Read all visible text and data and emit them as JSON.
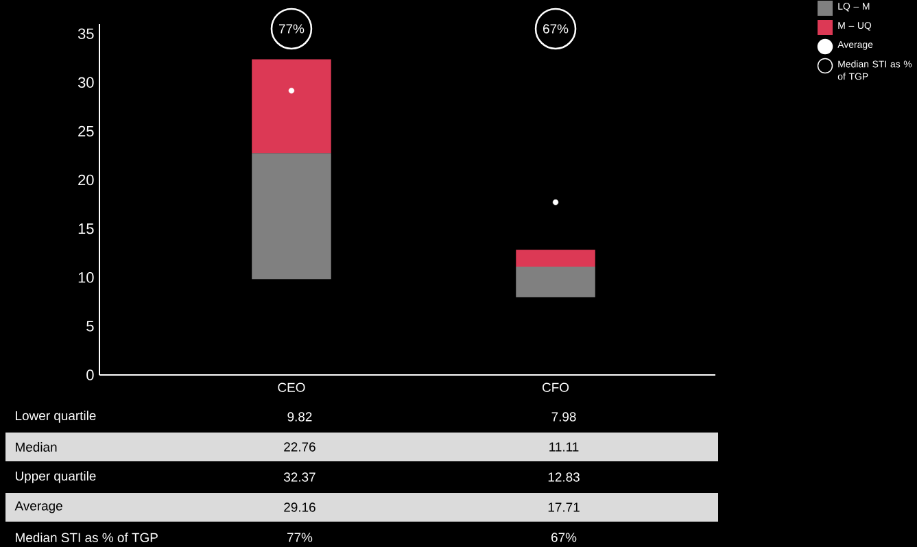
{
  "chart_data": {
    "type": "bar",
    "categories": [
      "CEO",
      "CFO"
    ],
    "series": [
      {
        "name": "LQ – M",
        "color": "#808080",
        "base": [
          9.82,
          7.98
        ],
        "values": [
          12.94,
          3.13
        ]
      },
      {
        "name": "M – UQ",
        "color": "#dc3955",
        "base": [
          22.76,
          11.11
        ],
        "values": [
          9.61,
          1.72
        ]
      },
      {
        "name": "Average",
        "type": "scatter",
        "marker": "circle",
        "color": "#ffffff",
        "values": [
          29.16,
          17.71
        ]
      },
      {
        "name": "Median STI as % of TGP",
        "type": "scatter",
        "marker": "circle",
        "color": "#000000",
        "values": [
          null,
          null
        ]
      }
    ],
    "ylim": [
      0,
      36
    ],
    "yticks": [
      0,
      5,
      10,
      15,
      20,
      25,
      30,
      35
    ],
    "legend": "top right",
    "annotations": [
      "77%",
      "67%",
      "Lower quartile",
      "9.82",
      "7.98",
      "Median",
      "22.76",
      "11.11",
      "Upper quartile",
      "32.37",
      "12.83",
      "Average",
      "29.16",
      "17.71",
      "Median STI as % of TGP",
      "77%",
      "67%"
    ]
  }
}
